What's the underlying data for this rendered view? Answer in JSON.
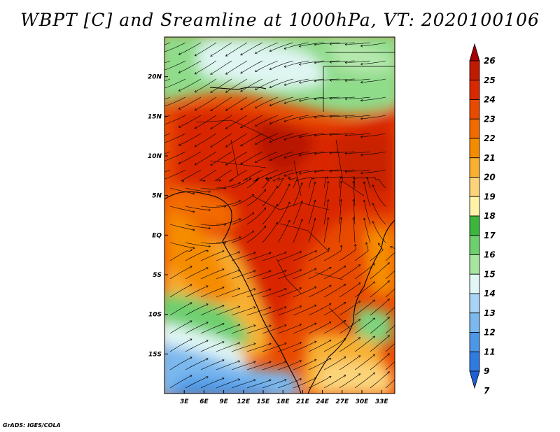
{
  "title": "WBPT [C] and Sreamline at 1000hPa, VT: 2020100106",
  "footer": "GrADS: IGES/COLA",
  "map": {
    "lon_range": [
      0,
      35
    ],
    "lat_range": [
      -20,
      25
    ],
    "x_ticks": [
      "3E",
      "6E",
      "9E",
      "12E",
      "15E",
      "18E",
      "21E",
      "24E",
      "27E",
      "30E",
      "33E"
    ],
    "x_tick_values": [
      3,
      6,
      9,
      12,
      15,
      18,
      21,
      24,
      27,
      30,
      33
    ],
    "y_ticks": [
      "20N",
      "15N",
      "10N",
      "5N",
      "EQ",
      "5S",
      "10S",
      "15S"
    ],
    "y_tick_values": [
      20,
      15,
      10,
      5,
      0,
      -5,
      -10,
      -15
    ]
  },
  "colorbar": {
    "labels": [
      "26",
      "25",
      "24",
      "23",
      "22",
      "21",
      "20",
      "19",
      "18",
      "17",
      "16",
      "15",
      "14",
      "13",
      "12",
      "11",
      "9",
      "7"
    ],
    "colors": [
      "#a50000",
      "#c01a00",
      "#d92800",
      "#e84a00",
      "#f26b00",
      "#f58c00",
      "#f7b030",
      "#fbd47a",
      "#fdf2a8",
      "#3cb63c",
      "#6ecf6e",
      "#a6e6a0",
      "#e1f7f5",
      "#a8d4f5",
      "#7ab8ee",
      "#4d98e6",
      "#2f7be0",
      "#1f5fd6"
    ]
  }
}
